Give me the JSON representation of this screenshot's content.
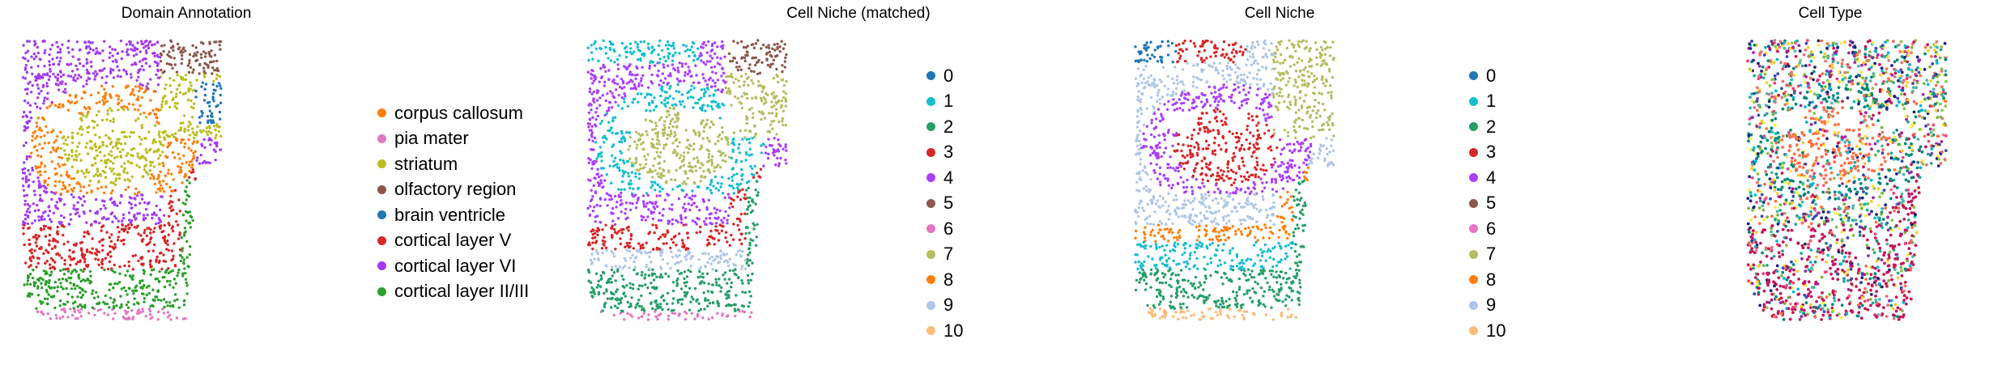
{
  "chart_data": [
    {
      "type": "scatter",
      "title": "Domain Annotation",
      "grid": false,
      "axes": "hidden",
      "legend": "right",
      "series": [
        {
          "name": "corpus callosum",
          "color": "#ff7f0e"
        },
        {
          "name": "pia mater",
          "color": "#e377c2"
        },
        {
          "name": "striatum",
          "color": "#bcbd22"
        },
        {
          "name": "olfactory region",
          "color": "#8c564b"
        },
        {
          "name": "brain ventricle",
          "color": "#1f77b4"
        },
        {
          "name": "cortical layer V",
          "color": "#d62728"
        },
        {
          "name": "cortical layer VI",
          "color": "#a33cf0"
        },
        {
          "name": "cortical layer II/III",
          "color": "#2ca02c"
        }
      ]
    },
    {
      "type": "scatter",
      "title": "Cell Niche (matched)",
      "grid": false,
      "axes": "hidden",
      "legend": "right",
      "series": [
        {
          "name": "0",
          "color": "#1f77b4"
        },
        {
          "name": "1",
          "color": "#17becf"
        },
        {
          "name": "2",
          "color": "#279e68"
        },
        {
          "name": "3",
          "color": "#d62728"
        },
        {
          "name": "4",
          "color": "#aa40fc"
        },
        {
          "name": "5",
          "color": "#8c564b"
        },
        {
          "name": "6",
          "color": "#e377c2"
        },
        {
          "name": "7",
          "color": "#b5bd61"
        },
        {
          "name": "8",
          "color": "#ff7f0e"
        },
        {
          "name": "9",
          "color": "#aec7e8"
        },
        {
          "name": "10",
          "color": "#ffbb78"
        }
      ]
    },
    {
      "type": "scatter",
      "title": "Cell Niche",
      "grid": false,
      "axes": "hidden",
      "legend": "right",
      "series": [
        {
          "name": "0",
          "color": "#1f77b4"
        },
        {
          "name": "1",
          "color": "#17becf"
        },
        {
          "name": "2",
          "color": "#279e68"
        },
        {
          "name": "3",
          "color": "#d62728"
        },
        {
          "name": "4",
          "color": "#aa40fc"
        },
        {
          "name": "5",
          "color": "#8c564b"
        },
        {
          "name": "6",
          "color": "#e377c2"
        },
        {
          "name": "7",
          "color": "#b5bd61"
        },
        {
          "name": "8",
          "color": "#ff7f0e"
        },
        {
          "name": "9",
          "color": "#aec7e8"
        },
        {
          "name": "10",
          "color": "#ffbb78"
        }
      ]
    },
    {
      "type": "scatter",
      "title": "Cell Type",
      "grid": false,
      "axes": "hidden",
      "legend": "none",
      "palette": [
        "#00897b",
        "#c2185b",
        "#ffeb3b",
        "#1a237e",
        "#8bc34a",
        "#ff7043",
        "#4db6ac",
        "#ec407a",
        "#00bcd4",
        "#7cb342",
        "#e57373",
        "#26a69a",
        "#9c27b0",
        "#3949ab",
        "#ffca28"
      ]
    }
  ]
}
